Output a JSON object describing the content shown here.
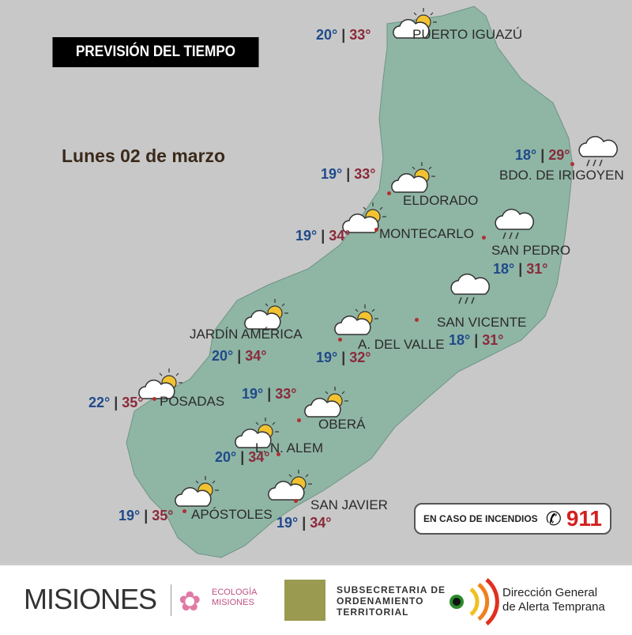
{
  "header": {
    "title": "PREVISIÓN DEL TIEMPO",
    "date": "Lunes 02 de marzo"
  },
  "colors": {
    "land": "#8fb5a5",
    "background": "#c8c8c8",
    "min_temp": "#1f4a8a",
    "max_temp": "#8a2a3a"
  },
  "cities": [
    {
      "name": "PUERTO IGUAZÚ",
      "min": "20°",
      "max": "33°",
      "icon": "partly-cloudy-icon"
    },
    {
      "name": "BDO. DE IRIGOYEN",
      "min": "18°",
      "max": "29°",
      "icon": "rain-icon"
    },
    {
      "name": "ELDORADO",
      "min": "19°",
      "max": "33°",
      "icon": "partly-cloudy-icon"
    },
    {
      "name": "MONTECARLO",
      "min": "19°",
      "max": "34°",
      "icon": "partly-cloudy-icon"
    },
    {
      "name": "SAN PEDRO",
      "min": "18°",
      "max": "31°",
      "icon": "rain-icon"
    },
    {
      "name": "SAN VICENTE",
      "min": "18°",
      "max": "31°",
      "icon": "rain-icon"
    },
    {
      "name": "JARDÍN AMÉRICA",
      "min": "20°",
      "max": "34°",
      "icon": "partly-cloudy-icon"
    },
    {
      "name": "A. DEL VALLE",
      "min": "19°",
      "max": "32°",
      "icon": "partly-cloudy-icon"
    },
    {
      "name": "POSADAS",
      "min": "22°",
      "max": "35°",
      "icon": "partly-cloudy-icon"
    },
    {
      "name": "OBERÁ",
      "min": "19°",
      "max": "33°",
      "icon": "partly-cloudy-icon"
    },
    {
      "name": "L. N. ALEM",
      "min": "20°",
      "max": "34°",
      "icon": "partly-cloudy-icon"
    },
    {
      "name": "APÓSTOLES",
      "min": "19°",
      "max": "35°",
      "icon": "partly-cloudy-icon"
    },
    {
      "name": "SAN JAVIER",
      "min": "19°",
      "max": "34°",
      "icon": "partly-cloudy-icon"
    }
  ],
  "emergency": {
    "label": "EN CASO DE INCENDIOS",
    "number": "911"
  },
  "footer": {
    "misiones": "MISIONES",
    "ecologia": "ECOLOGÍA",
    "ecologia_sub": "MISIONES",
    "subsecretaria": [
      "SUBSECRETARIA DE",
      "ORDENAMIENTO",
      "TERRITORIAL"
    ],
    "direccion": [
      "Dirección General",
      "de Alerta Temprana"
    ]
  }
}
